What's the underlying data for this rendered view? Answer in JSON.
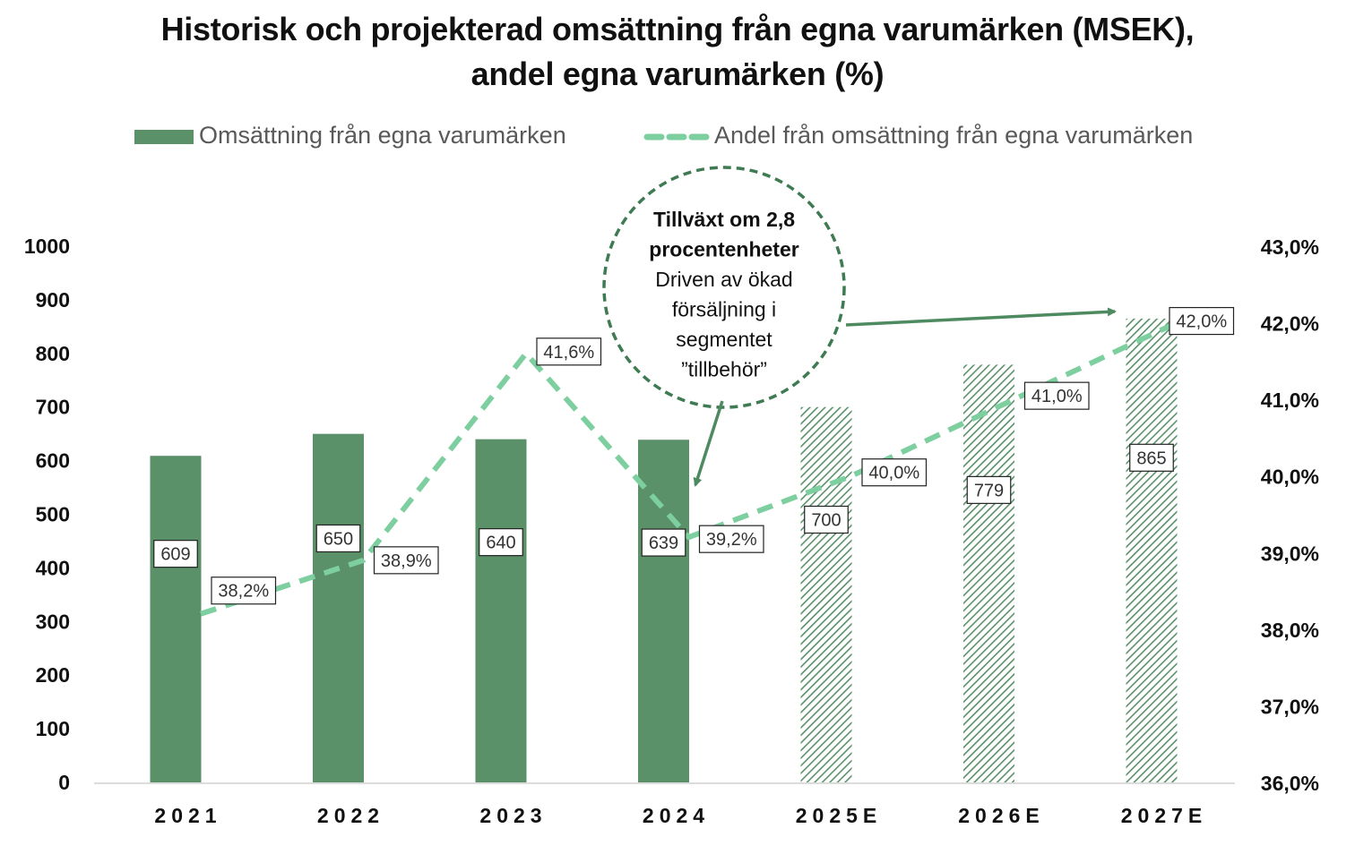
{
  "chart_data": {
    "type": "bar",
    "title": "Historisk och projekterad omsättning från egna varumärken (MSEK),",
    "subtitle": "andel egna varumärken (%)",
    "categories": [
      "2021",
      "2022",
      "2023",
      "2024",
      "2025E",
      "2026E",
      "2027E"
    ],
    "series": [
      {
        "name": "Omsättning från egna varumärken",
        "type": "bar",
        "axis": "left",
        "values": [
          609,
          650,
          640,
          639,
          700,
          779,
          865
        ],
        "labels": [
          "609",
          "650",
          "640",
          "639",
          "700",
          "779",
          "865"
        ],
        "projected": [
          false,
          false,
          false,
          false,
          true,
          true,
          true
        ],
        "color": "#5a9169"
      },
      {
        "name": "Andel från omsättning från egna varumärken",
        "type": "line",
        "style": "dashed",
        "axis": "right",
        "values": [
          38.2,
          38.9,
          41.6,
          39.2,
          40.0,
          41.0,
          42.0
        ],
        "labels": [
          "38,2%",
          "38,9%",
          "41,6%",
          "39,2%",
          "40,0%",
          "41,0%",
          "42,0%"
        ],
        "color": "#7ecfa0"
      }
    ],
    "y_left": {
      "ylim": [
        0,
        1000
      ],
      "ticks": [
        "0",
        "100",
        "200",
        "300",
        "400",
        "500",
        "600",
        "700",
        "800",
        "900",
        "1000"
      ]
    },
    "y_right": {
      "ylim": [
        36.0,
        43.0
      ],
      "ticks": [
        "36,0%",
        "37,0%",
        "38,0%",
        "39,0%",
        "40,0%",
        "41,0%",
        "42,0%",
        "43,0%"
      ]
    },
    "x_tick_labels": [
      "2021",
      "2022",
      "2023",
      "2024",
      "2025E",
      "2026E",
      "2027E"
    ],
    "legend_position": "top",
    "grid": false,
    "annotation": {
      "lines_bold": [
        "Tillväxt om 2,8",
        "procentenheter"
      ],
      "lines": [
        "Driven av  ökad",
        "försäljning i",
        "segmentet",
        "”tillbehör”"
      ],
      "color": "#3e7a52"
    }
  }
}
